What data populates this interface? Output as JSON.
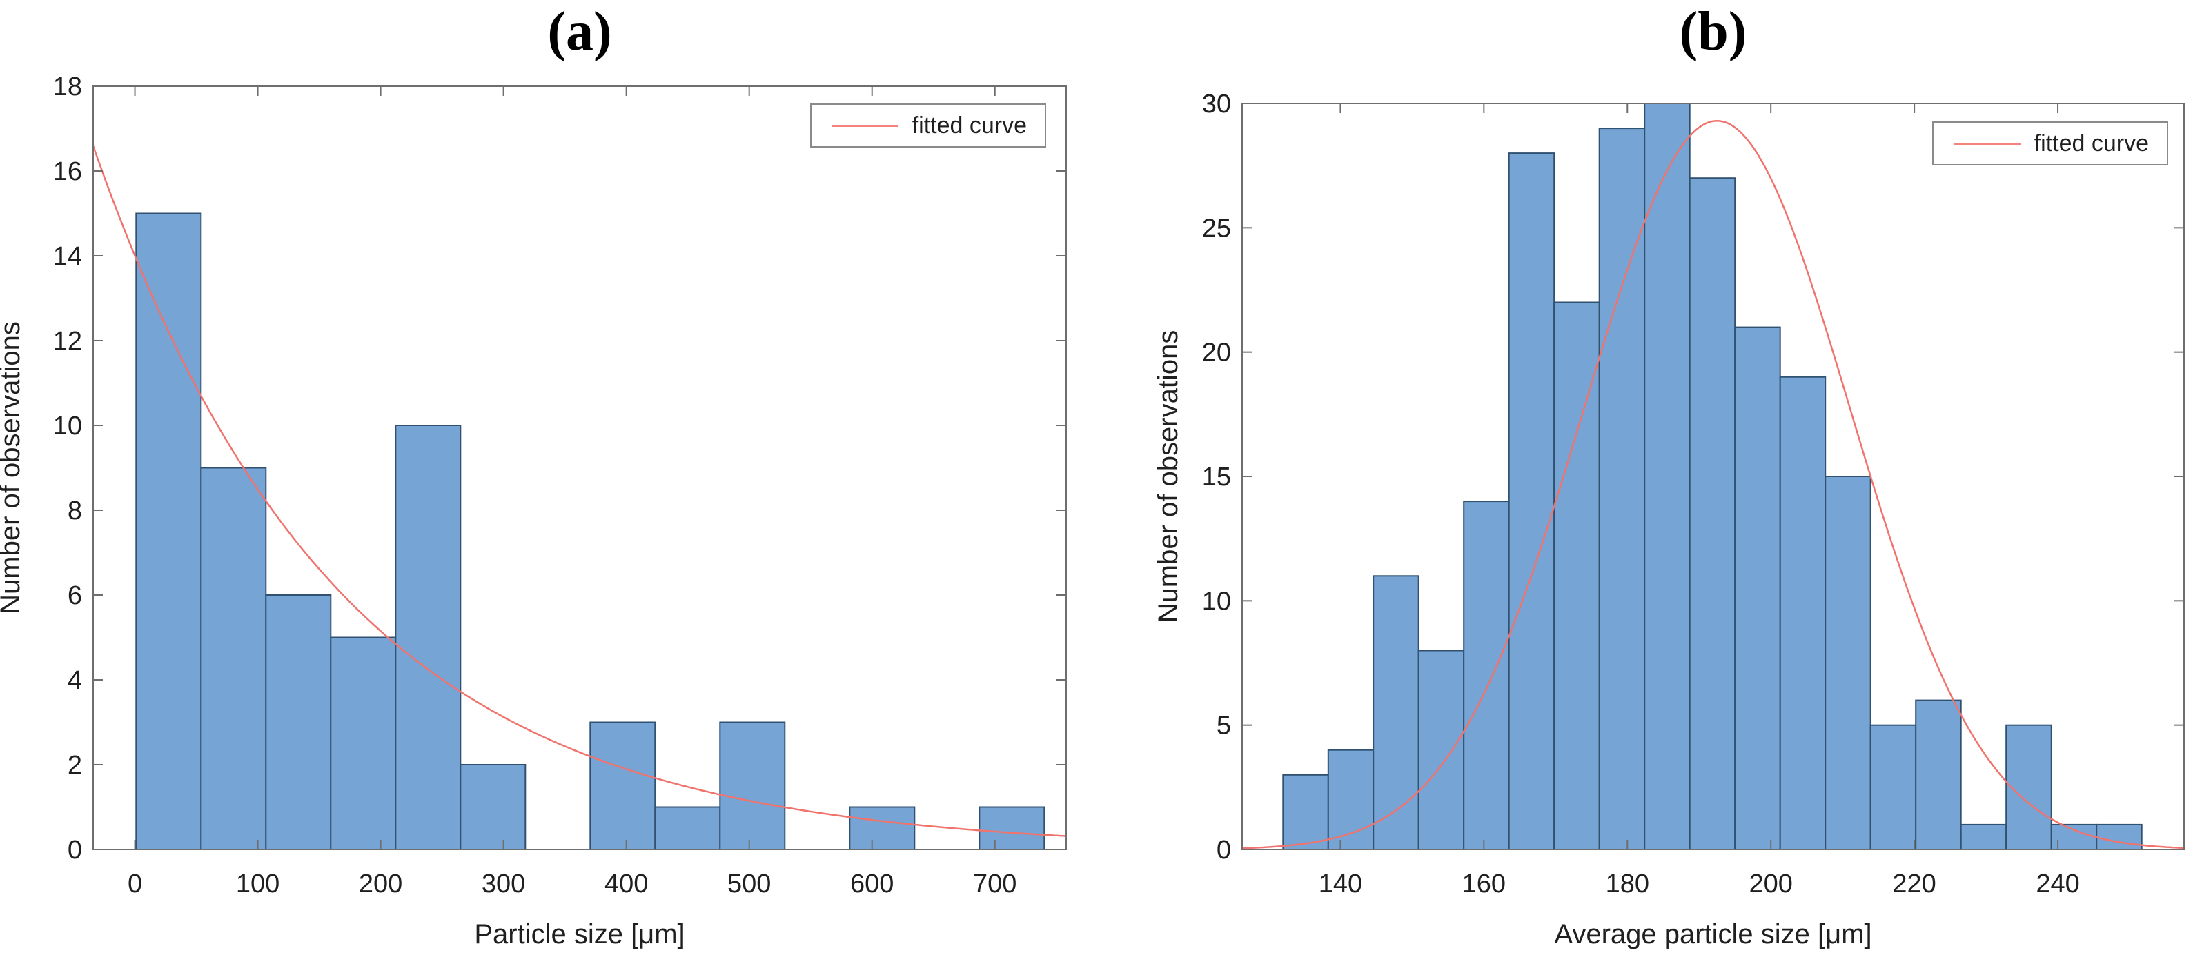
{
  "figure": {
    "description": "Two histograms with fitted distribution curves (MATLAB histfit style)",
    "background_color": "#ffffff",
    "frame_color": "#6e6e6e",
    "text_color": "#1f1f1f"
  },
  "chart_data": [
    {
      "type": "bar",
      "subtype": "histogram-with-fitted-curve",
      "title": "(a)",
      "xlabel": "Particle size [μm]",
      "ylabel": "Number of observations",
      "legend_label": "fitted curve",
      "legend_position": "top-right",
      "grid": false,
      "bin_start": 1,
      "bin_width": 52.8,
      "values": [
        15,
        9,
        6,
        5,
        10,
        2,
        0,
        3,
        1,
        3,
        0,
        1,
        0,
        1
      ],
      "total_observations": 56,
      "xlim": [
        -34,
        758
      ],
      "ylim": [
        0,
        18
      ],
      "x_ticks": [
        0,
        100,
        200,
        300,
        400,
        500,
        600,
        700
      ],
      "y_ticks": [
        0,
        2,
        4,
        6,
        8,
        10,
        12,
        14,
        16,
        18
      ],
      "fitted_curve": {
        "type": "exponential",
        "formula": "y = 14 * exp(-0.005 * x)",
        "A": 14,
        "lambda": 0.005
      },
      "bar_color": "#76a4d4",
      "bar_edge_color": "#315170",
      "curve_color": "#f0736d"
    },
    {
      "type": "bar",
      "subtype": "histogram-with-fitted-curve",
      "title": "(b)",
      "xlabel": "Average particle size [μm]",
      "ylabel": "Number of observations",
      "legend_label": "fitted curve",
      "legend_position": "top-right",
      "grid": false,
      "bin_start": 132,
      "bin_width": 6.3,
      "values": [
        3,
        4,
        11,
        8,
        14,
        28,
        22,
        29,
        30,
        27,
        21,
        19,
        15,
        5,
        6,
        1,
        5,
        1,
        1
      ],
      "total_observations": 250,
      "xlim": [
        126.3,
        257.6
      ],
      "ylim": [
        0,
        30
      ],
      "x_ticks": [
        140,
        160,
        180,
        200,
        220,
        240
      ],
      "y_ticks": [
        0,
        5,
        10,
        15,
        20,
        25,
        30
      ],
      "fitted_curve": {
        "type": "normal",
        "formula": "y = 29.3 * exp(-((x-192.5)^2)/(2*18.5^2))",
        "peak": 29.3,
        "mu": 192.5,
        "sigma": 18.5
      },
      "bar_color": "#76a4d4",
      "bar_edge_color": "#315170",
      "curve_color": "#f0736d"
    }
  ]
}
